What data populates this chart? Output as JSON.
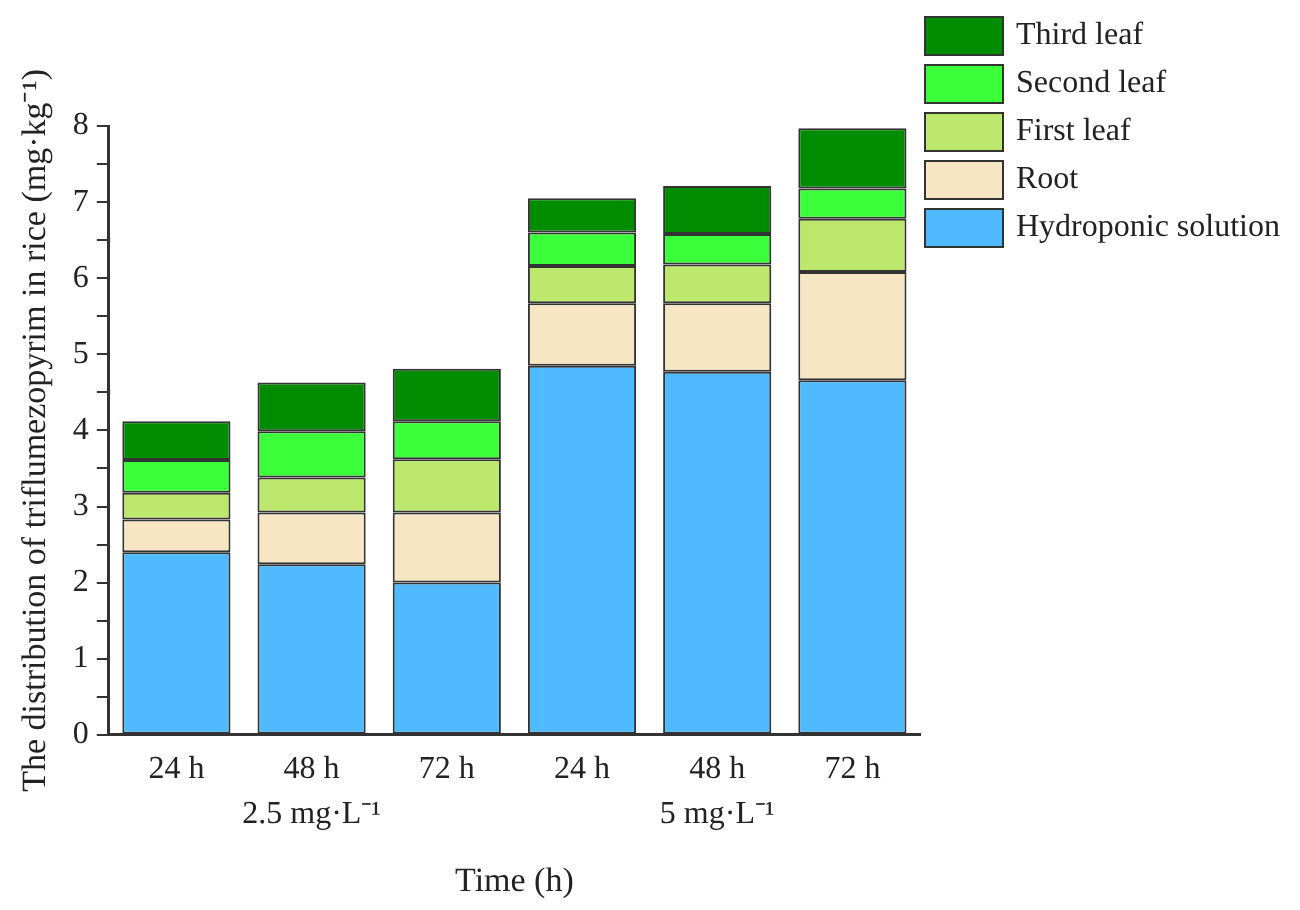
{
  "chart_data": {
    "type": "bar",
    "stacked": true,
    "xlabel": "Time (h)",
    "ylabel": "The distribution of triflumezopyrim in rice (mg·kg⁻¹)",
    "categories": [
      "24 h",
      "48 h",
      "72 h",
      "24 h",
      "48 h",
      "72 h"
    ],
    "annotations": [
      "2.5 mg·L⁻¹",
      "5 mg·L⁻¹"
    ],
    "series": [
      {
        "name": "Hydroponic solution",
        "color": "#4fbafd",
        "values": [
          2.4,
          2.24,
          2.0,
          4.85,
          4.77,
          4.66
        ]
      },
      {
        "name": "Root",
        "color": "#f7e6c4",
        "values": [
          0.43,
          0.68,
          0.92,
          0.82,
          0.9,
          1.42
        ]
      },
      {
        "name": "First leaf",
        "color": "#bde86d",
        "values": [
          0.35,
          0.46,
          0.7,
          0.49,
          0.51,
          0.7
        ]
      },
      {
        "name": "Second leaf",
        "color": "#3cff3c",
        "values": [
          0.43,
          0.61,
          0.5,
          0.44,
          0.4,
          0.4
        ]
      },
      {
        "name": "Third leaf",
        "color": "#008c00",
        "values": [
          0.51,
          0.64,
          0.69,
          0.45,
          0.63,
          0.79
        ]
      }
    ],
    "ylim": [
      0,
      8
    ],
    "yticks": [
      0,
      {
        "value": 0.5,
        "label": null
      },
      1,
      {
        "value": 1.5,
        "label": null
      },
      2,
      {
        "value": 2.5,
        "label": null
      },
      3,
      {
        "value": 3.5,
        "label": null
      },
      4,
      {
        "value": 4.5,
        "label": null
      },
      5,
      {
        "value": 5.5,
        "label": null
      },
      6,
      {
        "value": 6.5,
        "label": null
      },
      7,
      {
        "value": 7.5,
        "label": null
      },
      8
    ],
    "grid": false,
    "legend": "top right"
  }
}
